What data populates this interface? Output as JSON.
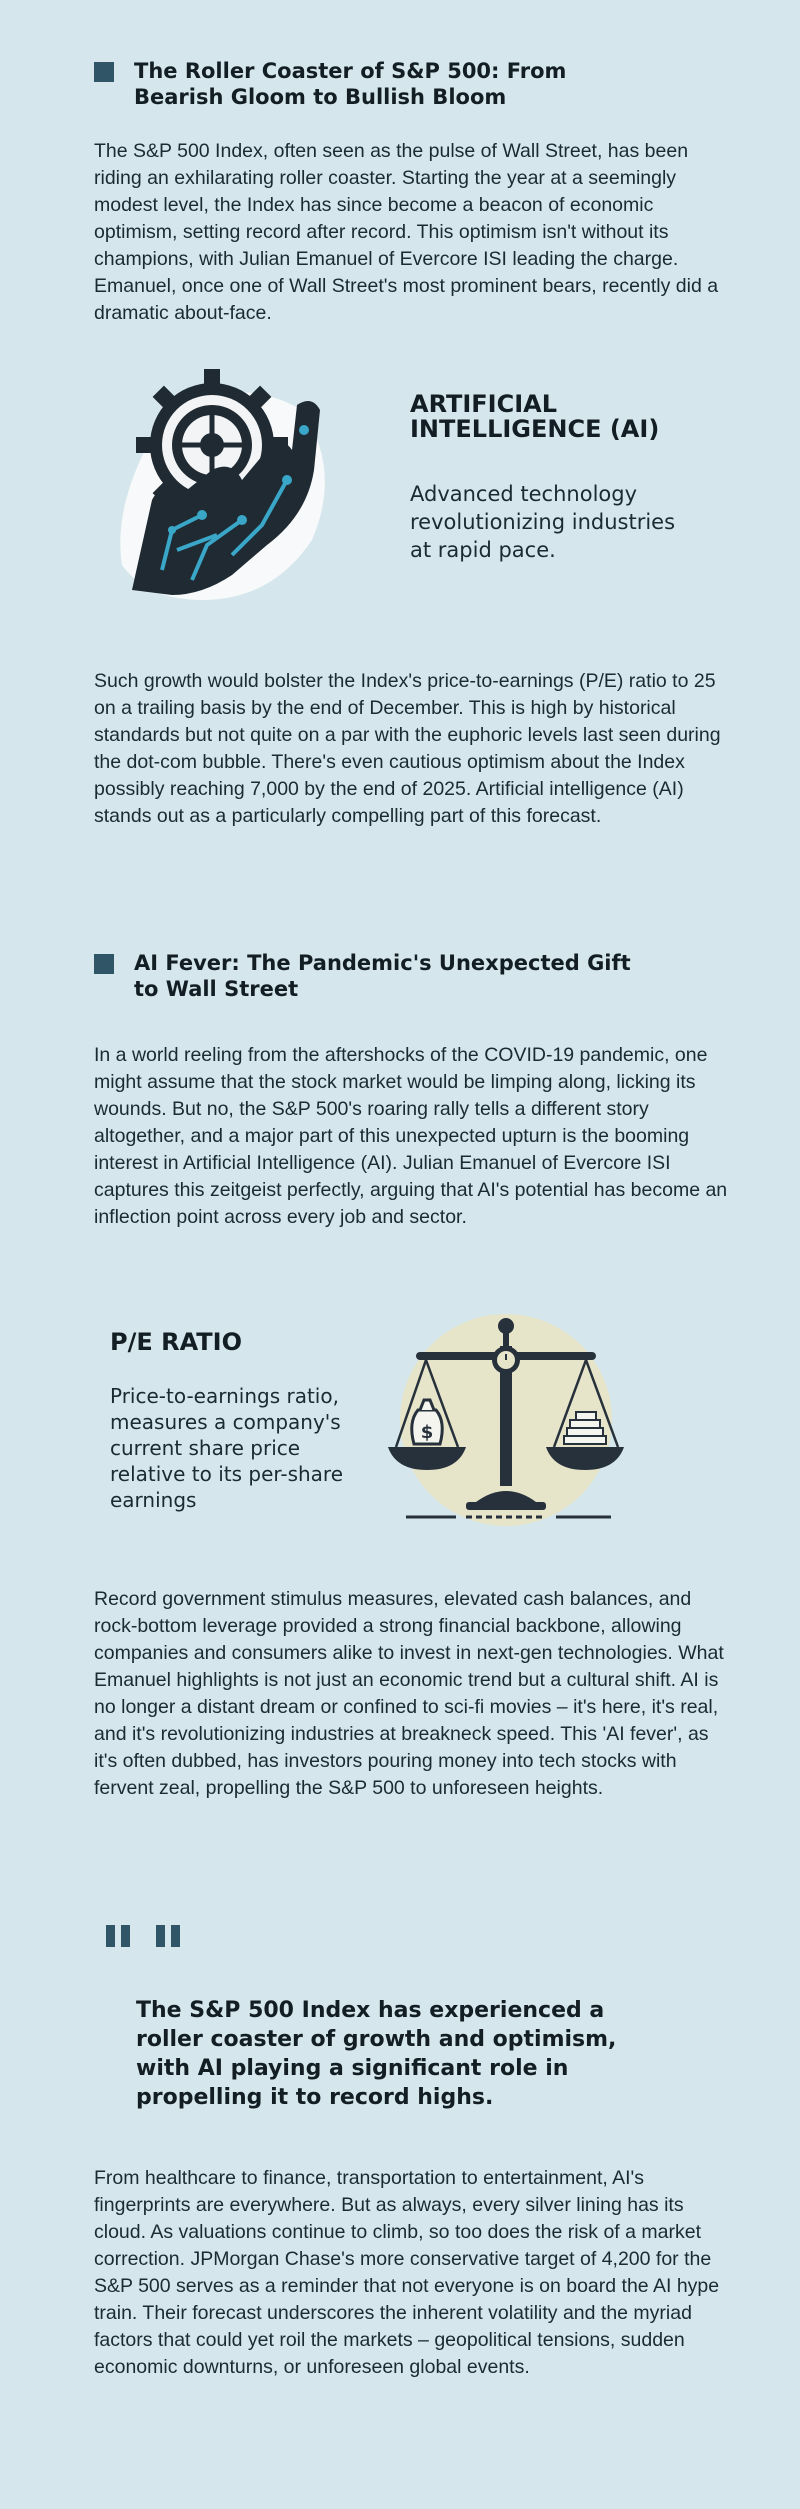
{
  "section1": {
    "heading": "The Roller Coaster of S&P 500: From Bearish Gloom to Bullish Bloom",
    "para1": "The S&P 500 Index, often seen as the pulse of Wall Street, has been riding an exhilarating roller coaster. Starting the year at a seemingly modest level, the Index has since become a beacon of economic optimism, setting record after record. This optimism isn't without its champions, with Julian Emanuel of Evercore ISI leading the charge. Emanuel, once one of Wall Street's most prominent bears, recently did a dramatic about-face.",
    "feature": {
      "title": "ARTIFICIAL INTELLIGENCE (AI)",
      "description": "Advanced technology revolutionizing industries at rapid pace."
    },
    "para2": "Such growth would bolster the Index's price-to-earnings (P/E) ratio to 25 on a trailing basis by the end of December. This is high by historical standards but not quite on a par with the euphoric levels last seen during the dot-com bubble. There's even cautious optimism about the Index possibly reaching 7,000 by the end of 2025. Artificial intelligence (AI) stands out as a particularly compelling part of this forecast."
  },
  "section2": {
    "heading": "AI Fever: The Pandemic's Unexpected Gift to Wall Street",
    "para1": "In a world reeling from the aftershocks of the COVID-19 pandemic, one might assume that the stock market would be limping along, licking its wounds. But no, the S&P 500's roaring rally tells a different story altogether, and a major part of this unexpected upturn is the booming interest in Artificial Intelligence (AI). Julian Emanuel of Evercore ISI captures this zeitgeist perfectly, arguing that AI's potential has become an inflection point across every job and sector.",
    "feature": {
      "title": "P/E RATIO",
      "description": "Price-to-earnings ratio, measures a company's current share price relative to its per-share earnings"
    },
    "para2": "Record government stimulus measures, elevated cash balances, and rock-bottom leverage provided a strong financial backbone, allowing companies and consumers alike to invest in next-gen technologies. What Emanuel highlights is not just an economic trend but a cultural shift. AI is no longer a distant dream or confined to sci-fi movies – it's here, it's real, and it's revolutionizing industries at breakneck speed. This 'AI fever', as it's often dubbed, has investors pouring money into tech stocks with fervent zeal, propelling the S&P 500 to unforeseen heights."
  },
  "quote": {
    "text": "The S&P 500 Index has experienced a roller coaster of growth and optimism, with AI playing a significant role in propelling it to record highs."
  },
  "closing": {
    "para": "From healthcare to finance, transportation to entertainment, AI's fingerprints are everywhere. But as always, every silver lining has its cloud. As valuations continue to climb, so too does the risk of a market correction. JPMorgan Chase's more conservative target of 4,200 for the S&P 500 serves as a reminder that not everyone is on board the AI hype train. Their forecast underscores the inherent volatility and the myriad factors that could yet roil the markets – geopolitical tensions, sudden economic downturns, or unforeseen global events."
  },
  "icons": {
    "ai_image": "robot-hand-gear-icon",
    "pe_image": "balance-scale-icon",
    "quote": "quote-mark-icon"
  },
  "colors": {
    "background": "#d5e7ec",
    "accent": "#2f5566",
    "text": "#1c2a31"
  }
}
